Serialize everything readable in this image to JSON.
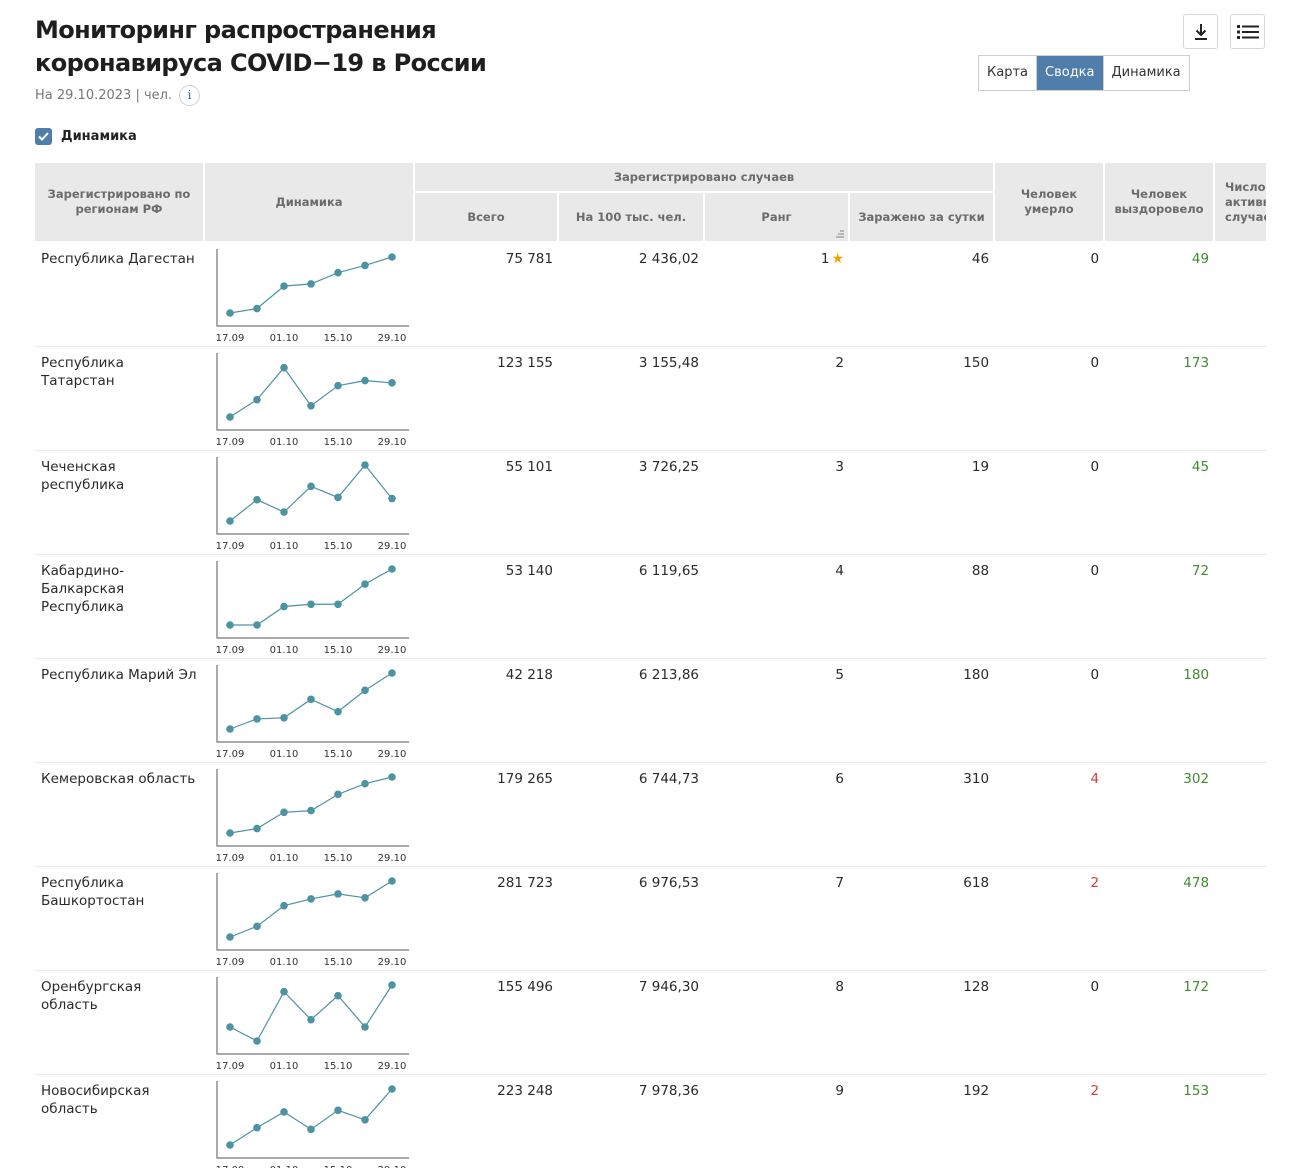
{
  "header": {
    "title": "Мониторинг распространения коронавируса COVID−19 в России",
    "date_text": "На 29.10.2023 | чел.",
    "info_glyph": "i"
  },
  "toolbar": {
    "download_icon": "download-icon",
    "list_icon": "list-icon"
  },
  "view_tabs": [
    {
      "label": "Карта",
      "active": false
    },
    {
      "label": "Сводка",
      "active": true
    },
    {
      "label": "Динамика",
      "active": false
    }
  ],
  "dynamics_toggle": {
    "label": "Динамика",
    "checked": true
  },
  "table": {
    "headers": {
      "region": "Зарегистрировано по регионам РФ",
      "dynamics": "Динамика",
      "registered_group": "Зарегистрировано случаев",
      "total": "Всего",
      "per100k": "На 100 тыс. чел.",
      "rank": "Ранг",
      "daily": "Заражено за сутки",
      "died": "Человек умерло",
      "recovered": "Человек выздоровело",
      "active_partial": "Число активных случаев"
    },
    "spark_dates": [
      "17.09",
      "01.10",
      "15.10",
      "29.10"
    ],
    "rows": [
      {
        "region": "Республика Дагестан",
        "total": "75 781",
        "per100k": "2 436,02",
        "rank": "1",
        "star": true,
        "daily": "46",
        "died": "0",
        "died_red": false,
        "recovered": "49",
        "active": "",
        "spark": [
          0.0,
          0.08,
          0.48,
          0.52,
          0.72,
          0.85,
          1.0
        ]
      },
      {
        "region": "Республика Татарстан",
        "total": "123 155",
        "per100k": "3 155,48",
        "rank": "2",
        "star": false,
        "daily": "150",
        "died": "0",
        "died_red": false,
        "recovered": "173",
        "active": "",
        "spark": [
          0.0,
          0.31,
          0.88,
          0.2,
          0.56,
          0.65,
          0.61
        ]
      },
      {
        "region": "Чеченская республика",
        "total": "55 101",
        "per100k": "3 726,25",
        "rank": "3",
        "star": false,
        "daily": "19",
        "died": "0",
        "died_red": false,
        "recovered": "45",
        "active": "",
        "spark": [
          0.0,
          0.38,
          0.16,
          0.62,
          0.42,
          1.0,
          0.4
        ]
      },
      {
        "region": "Кабардино-Балкарская Республика",
        "total": "53 140",
        "per100k": "6 119,65",
        "rank": "4",
        "star": false,
        "daily": "88",
        "died": "0",
        "died_red": false,
        "recovered": "72",
        "active": "",
        "spark": [
          0.0,
          0.0,
          0.33,
          0.37,
          0.37,
          0.73,
          1.0
        ]
      },
      {
        "region": "Республика Марий Эл",
        "total": "42 218",
        "per100k": "6 213,86",
        "rank": "5",
        "star": false,
        "daily": "180",
        "died": "0",
        "died_red": false,
        "recovered": "180",
        "active": "",
        "spark": [
          0.0,
          0.18,
          0.2,
          0.53,
          0.31,
          0.69,
          1.0
        ]
      },
      {
        "region": "Кемеровская область",
        "total": "179 265",
        "per100k": "6 744,73",
        "rank": "6",
        "star": false,
        "daily": "310",
        "died": "4",
        "died_red": true,
        "recovered": "302",
        "active": "",
        "spark": [
          0.0,
          0.08,
          0.37,
          0.4,
          0.69,
          0.88,
          1.0
        ]
      },
      {
        "region": "Республика Башкортостан",
        "total": "281 723",
        "per100k": "6 976,53",
        "rank": "7",
        "star": false,
        "daily": "618",
        "died": "2",
        "died_red": true,
        "recovered": "478",
        "active": "",
        "spark": [
          0.0,
          0.19,
          0.56,
          0.68,
          0.77,
          0.7,
          1.0
        ]
      },
      {
        "region": "Оренбургская область",
        "total": "155 496",
        "per100k": "7 946,30",
        "rank": "8",
        "star": false,
        "daily": "128",
        "died": "0",
        "died_red": false,
        "recovered": "172",
        "active": "",
        "spark": [
          0.25,
          0.0,
          0.88,
          0.38,
          0.81,
          0.25,
          1.0
        ]
      },
      {
        "region": "Новосибирская область",
        "total": "223 248",
        "per100k": "7 978,36",
        "rank": "9",
        "star": false,
        "daily": "192",
        "died": "2",
        "died_red": true,
        "recovered": "153",
        "active": "",
        "spark": [
          0.0,
          0.31,
          0.59,
          0.28,
          0.62,
          0.45,
          1.0
        ]
      }
    ]
  }
}
